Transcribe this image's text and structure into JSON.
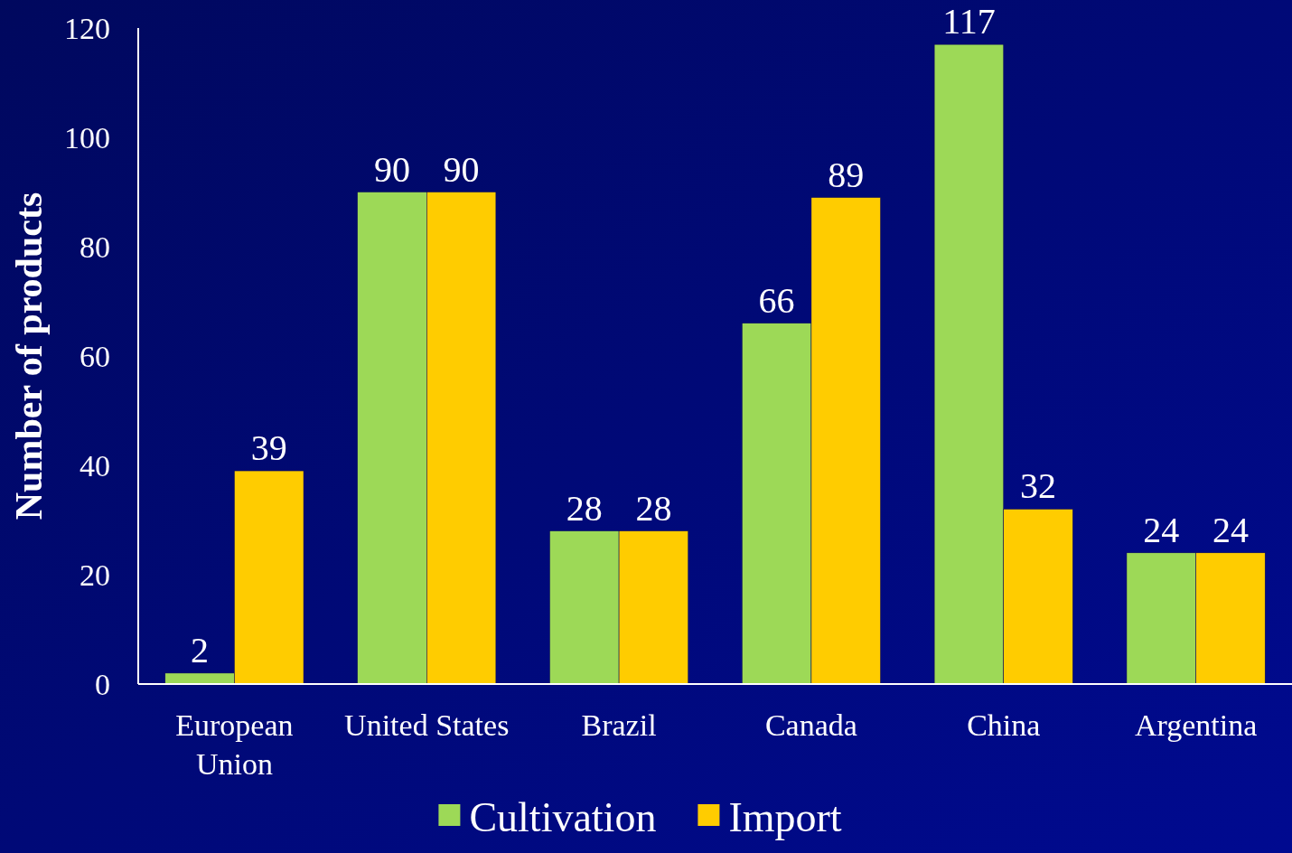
{
  "chart_data": {
    "type": "bar",
    "ylabel": "Number of products",
    "categories": [
      "European Union",
      "United States",
      "Brazil",
      "Canada",
      "China",
      "Argentina"
    ],
    "series": [
      {
        "name": "Cultivation",
        "color": "#9dd957",
        "values": [
          2,
          90,
          28,
          66,
          117,
          24
        ]
      },
      {
        "name": "Import",
        "color": "#ffcc00",
        "values": [
          39,
          90,
          28,
          89,
          32,
          24
        ]
      }
    ],
    "ylim": [
      0,
      120
    ],
    "yticks": [
      0,
      20,
      40,
      60,
      80,
      100,
      120
    ],
    "grid": false,
    "legend": "bottom",
    "data_labels": true
  }
}
